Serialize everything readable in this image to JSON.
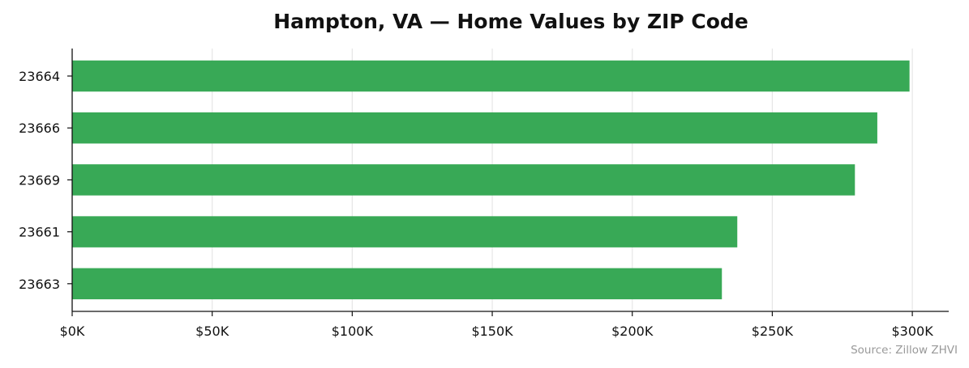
{
  "chart_data": {
    "type": "bar",
    "orientation": "horizontal",
    "title": "Hampton, VA — Home Values by ZIP Code",
    "categories": [
      "23664",
      "23666",
      "23669",
      "23661",
      "23663"
    ],
    "values": [
      299000,
      287500,
      279500,
      237500,
      232000
    ],
    "xlim": [
      0,
      313000
    ],
    "xticks": [
      0,
      50000,
      100000,
      150000,
      200000,
      250000,
      300000
    ],
    "xtick_labels": [
      "$0K",
      "$50K",
      "$100K",
      "$150K",
      "$200K",
      "$250K",
      "$300K"
    ],
    "xlabel": "",
    "ylabel": "",
    "grid": "vertical",
    "bar_color": "#35a853",
    "source_note": "Source: Zillow ZHVI"
  }
}
